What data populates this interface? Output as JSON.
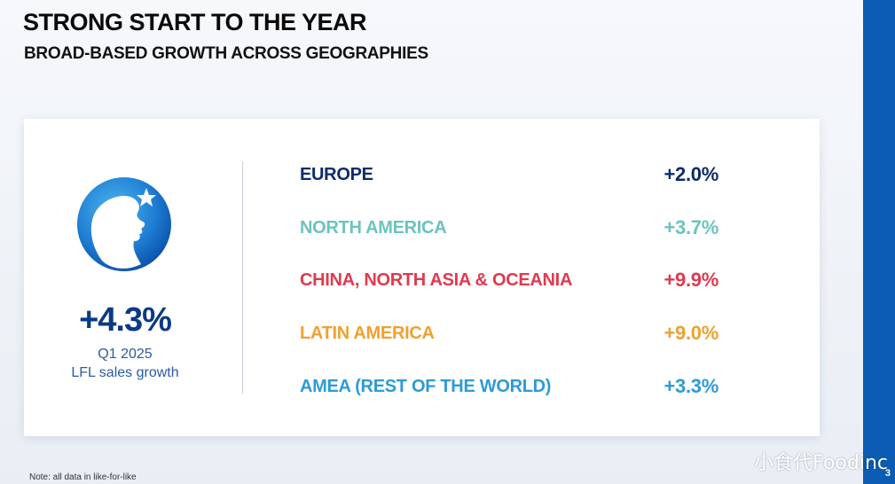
{
  "header": {
    "title": "STRONG START TO THE YEAR",
    "subtitle": "BROAD-BASED GROWTH ACROSS GEOGRAPHIES"
  },
  "summary": {
    "value": "+4.3%",
    "period": "Q1 2025",
    "label": "LFL sales growth"
  },
  "regions": [
    {
      "name": "EUROPE",
      "value": "+2.0%",
      "color": "#0b2c6b"
    },
    {
      "name": "NORTH AMERICA",
      "value": "+3.7%",
      "color": "#6cc3c0"
    },
    {
      "name": "CHINA, NORTH ASIA & OCEANIA",
      "value": "+9.9%",
      "color": "#e03a4e"
    },
    {
      "name": "LATIN AMERICA",
      "value": "+9.0%",
      "color": "#f0a030"
    },
    {
      "name": "AMEA (REST OF THE WORLD)",
      "value": "+3.3%",
      "color": "#2d9bd6"
    }
  ],
  "footer": {
    "note": "Note: all data in like-for-like",
    "page_number": "3",
    "watermark": "小食代Foodinc"
  },
  "colors": {
    "accent": "#0b5db3",
    "headline_value": "#0b3a84"
  }
}
